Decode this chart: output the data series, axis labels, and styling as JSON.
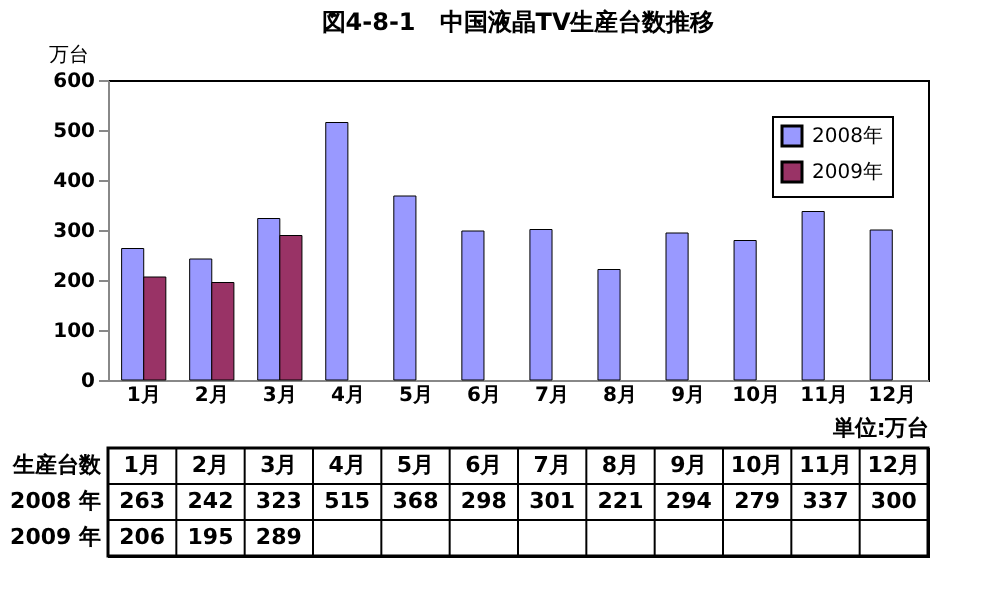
{
  "chart_data": {
    "type": "bar",
    "title": "図4-8-1　中国液晶TV生産台数推移",
    "ylabel": "万台",
    "categories": [
      "1月",
      "2月",
      "3月",
      "4月",
      "5月",
      "6月",
      "7月",
      "8月",
      "9月",
      "10月",
      "11月",
      "12月"
    ],
    "series": [
      {
        "name": "2008年",
        "color": "#9999ff",
        "values": [
          263,
          242,
          323,
          515,
          368,
          298,
          301,
          221,
          294,
          279,
          337,
          300
        ]
      },
      {
        "name": "2009年",
        "color": "#993366",
        "values": [
          206,
          195,
          289,
          null,
          null,
          null,
          null,
          null,
          null,
          null,
          null,
          null
        ]
      }
    ],
    "ylim": [
      0,
      600
    ],
    "yticks": [
      0,
      100,
      200,
      300,
      400,
      500,
      600
    ],
    "grid": false,
    "legend": "top right",
    "data_labels": true,
    "annotations": [
      "単位:万台",
      "生産台数",
      "2008 年",
      "2009 年"
    ]
  }
}
